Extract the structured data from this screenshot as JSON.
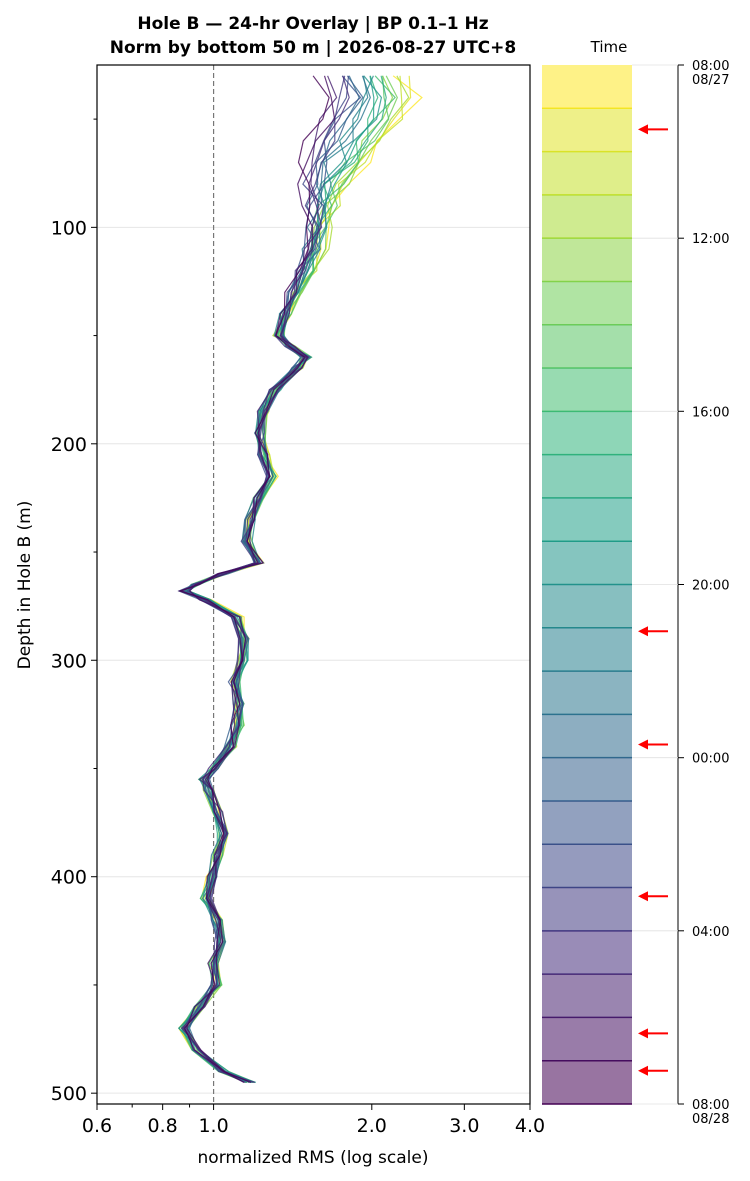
{
  "chart_data": {
    "type": "line",
    "title_line1": "Hole B — 24-hr Overlay  |  BP 0.1–1 Hz",
    "title_line2": "Norm by bottom 50 m  |  2026-08-27 UTC+8",
    "xlabel": "normalized RMS  (log scale)",
    "ylabel": "Depth in Hole B (m)",
    "x_scale": "log",
    "xlim": [
      0.6,
      4.0
    ],
    "ylim": [
      505,
      25
    ],
    "x_ticks": [
      {
        "value": 0.6,
        "label": "0.6"
      },
      {
        "value": 0.8,
        "label": "0.8"
      },
      {
        "value": 1.0,
        "label": "1.0"
      },
      {
        "value": 2.0,
        "label": "2.0"
      },
      {
        "value": 3.0,
        "label": "3.0"
      },
      {
        "value": 4.0,
        "label": "4.0"
      }
    ],
    "y_ticks": [
      {
        "value": 100,
        "label": "100"
      },
      {
        "value": 200,
        "label": "200"
      },
      {
        "value": 300,
        "label": "300"
      },
      {
        "value": 400,
        "label": "400"
      },
      {
        "value": 500,
        "label": "500"
      }
    ],
    "reference_line_x": 1.0,
    "grid": "horizontal",
    "colormap": "viridis",
    "num_traces": 24,
    "profile_depth_m": [
      30,
      40,
      50,
      60,
      70,
      80,
      90,
      100,
      110,
      120,
      130,
      140,
      150,
      155,
      160,
      165,
      175,
      185,
      195,
      205,
      215,
      225,
      235,
      245,
      255,
      260,
      265,
      268,
      272,
      280,
      290,
      300,
      310,
      320,
      330,
      340,
      350,
      355,
      360,
      370,
      380,
      390,
      400,
      410,
      420,
      430,
      440,
      450,
      460,
      470,
      480,
      490,
      495
    ],
    "profile_rms_early": [
      2.3,
      2.4,
      2.3,
      2.1,
      1.95,
      1.8,
      1.7,
      1.62,
      1.6,
      1.55,
      1.45,
      1.38,
      1.33,
      1.4,
      1.5,
      1.45,
      1.32,
      1.25,
      1.23,
      1.25,
      1.3,
      1.22,
      1.18,
      1.16,
      1.22,
      1.05,
      0.93,
      0.88,
      0.97,
      1.12,
      1.15,
      1.14,
      1.1,
      1.12,
      1.12,
      1.08,
      1.0,
      0.96,
      0.98,
      1.02,
      1.04,
      1.02,
      0.99,
      0.96,
      1.02,
      1.03,
      1.0,
      1.02,
      0.94,
      0.88,
      0.92,
      1.05,
      1.18
    ],
    "profile_rms_late": [
      1.6,
      1.65,
      1.6,
      1.55,
      1.5,
      1.47,
      1.52,
      1.55,
      1.5,
      1.45,
      1.4,
      1.36,
      1.33,
      1.4,
      1.5,
      1.44,
      1.3,
      1.24,
      1.22,
      1.24,
      1.28,
      1.21,
      1.17,
      1.15,
      1.22,
      1.04,
      0.92,
      0.88,
      0.96,
      1.1,
      1.14,
      1.13,
      1.09,
      1.11,
      1.1,
      1.07,
      1.0,
      0.96,
      0.98,
      1.02,
      1.04,
      1.01,
      0.99,
      0.97,
      1.01,
      1.03,
      1.0,
      1.01,
      0.94,
      0.88,
      0.93,
      1.04,
      1.17
    ],
    "colorbar": {
      "title": "Time",
      "ticks": [
        {
          "line1": "08:00",
          "line2": "08/27",
          "frac": 0.0
        },
        {
          "line1": "12:00",
          "line2": "",
          "frac": 0.1667
        },
        {
          "line1": "16:00",
          "line2": "",
          "frac": 0.3333
        },
        {
          "line1": "20:00",
          "line2": "",
          "frac": 0.5
        },
        {
          "line1": "00:00",
          "line2": "",
          "frac": 0.6667
        },
        {
          "line1": "04:00",
          "line2": "",
          "frac": 0.8333
        },
        {
          "line1": "08:00",
          "line2": "08/28",
          "frac": 1.0
        }
      ],
      "arrow_fracs": [
        0.062,
        0.545,
        0.654,
        0.8,
        0.932,
        0.968
      ],
      "arrow_color": "#ff0000",
      "alpha": 0.55
    }
  }
}
